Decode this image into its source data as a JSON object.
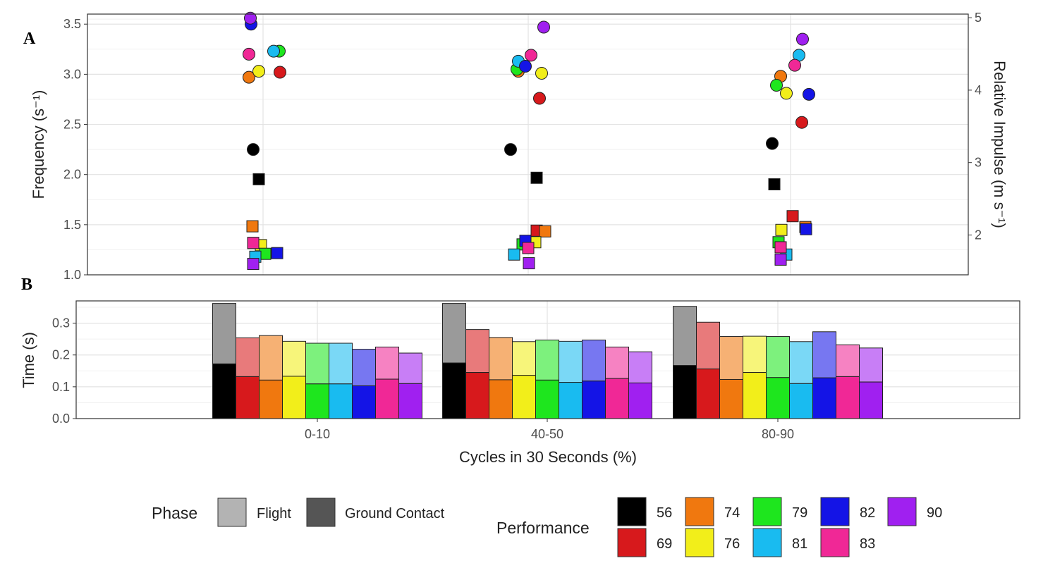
{
  "panels": {
    "a_label": "A",
    "b_label": "B"
  },
  "categories": [
    "0-10",
    "40-50",
    "80-90"
  ],
  "performance_levels": [
    {
      "name": "56",
      "color": "#000000"
    },
    {
      "name": "69",
      "color": "#d7191c"
    },
    {
      "name": "74",
      "color": "#f0780f"
    },
    {
      "name": "76",
      "color": "#f2ee1a"
    },
    {
      "name": "79",
      "color": "#1ee61e"
    },
    {
      "name": "81",
      "color": "#19bbf0"
    },
    {
      "name": "82",
      "color": "#1414e6"
    },
    {
      "name": "83",
      "color": "#f02896"
    },
    {
      "name": "90",
      "color": "#a020f0"
    }
  ],
  "chart_data": [
    {
      "type": "scatter",
      "panel": "A",
      "ylabel": "Frequency (s⁻¹)",
      "y2label": "Relative Impulse (m s⁻¹)",
      "ylim": [
        1.0,
        3.6
      ],
      "y2lim": [
        1.45,
        5.05
      ],
      "yticks": [
        1.0,
        1.5,
        2.0,
        2.5,
        3.0,
        3.5
      ],
      "y2ticks": [
        2,
        3,
        4,
        5
      ],
      "tick_labels": [
        "1.0",
        "1.5",
        "2.0",
        "2.5",
        "3.0",
        "3.5"
      ],
      "tick2_labels": [
        "2",
        "3",
        "4",
        "5"
      ],
      "grid": true,
      "marker_note": "circles = frequency (left axis), squares = relative impulse (right axis)",
      "frequency": [
        {
          "performance": "56",
          "values": [
            2.25,
            2.25,
            2.31
          ]
        },
        {
          "performance": "69",
          "values": [
            3.02,
            2.76,
            2.52
          ]
        },
        {
          "performance": "74",
          "values": [
            2.97,
            3.03,
            2.98
          ]
        },
        {
          "performance": "76",
          "values": [
            3.03,
            3.01,
            2.81
          ]
        },
        {
          "performance": "79",
          "values": [
            3.23,
            3.05,
            2.89
          ]
        },
        {
          "performance": "81",
          "values": [
            3.23,
            3.13,
            3.19
          ]
        },
        {
          "performance": "82",
          "values": [
            3.5,
            3.08,
            2.8
          ]
        },
        {
          "performance": "83",
          "values": [
            3.2,
            3.19,
            3.09
          ]
        },
        {
          "performance": "90",
          "values": [
            3.56,
            3.47,
            3.35
          ]
        }
      ],
      "impulse": [
        {
          "performance": "56",
          "values": [
            2.77,
            2.79,
            2.7
          ]
        },
        {
          "performance": "69",
          "values": [
            1.89,
            2.06,
            2.26
          ]
        },
        {
          "performance": "74",
          "values": [
            2.12,
            2.05,
            2.11
          ]
        },
        {
          "performance": "76",
          "values": [
            1.86,
            1.9,
            2.07
          ]
        },
        {
          "performance": "79",
          "values": [
            1.74,
            1.87,
            1.9
          ]
        },
        {
          "performance": "81",
          "values": [
            1.7,
            1.73,
            1.73
          ]
        },
        {
          "performance": "82",
          "values": [
            1.75,
            1.92,
            2.08
          ]
        },
        {
          "performance": "83",
          "values": [
            1.89,
            1.82,
            1.83
          ]
        },
        {
          "performance": "90",
          "values": [
            1.6,
            1.61,
            1.66
          ]
        }
      ]
    },
    {
      "type": "bar",
      "panel": "B",
      "ylabel": "Time (s)",
      "xlabel": "Cycles in 30 Seconds (%)",
      "ylim": [
        0,
        0.37
      ],
      "yticks": [
        0.0,
        0.1,
        0.2,
        0.3
      ],
      "tick_labels": [
        "0.0",
        "0.1",
        "0.2",
        "0.3"
      ],
      "grid": true,
      "stacked": true,
      "series": [
        {
          "name": "Ground Contact",
          "values": [
            [
              0.172,
              0.132,
              0.121,
              0.133,
              0.109,
              0.109,
              0.103,
              0.124,
              0.11
            ],
            [
              0.175,
              0.145,
              0.122,
              0.136,
              0.121,
              0.114,
              0.118,
              0.126,
              0.112
            ],
            [
              0.167,
              0.156,
              0.123,
              0.145,
              0.129,
              0.11,
              0.128,
              0.132,
              0.115
            ]
          ]
        },
        {
          "name": "Flight",
          "values": [
            [
              0.19,
              0.122,
              0.14,
              0.11,
              0.128,
              0.128,
              0.115,
              0.101,
              0.096
            ],
            [
              0.187,
              0.135,
              0.133,
              0.106,
              0.126,
              0.129,
              0.129,
              0.099,
              0.098
            ],
            [
              0.186,
              0.147,
              0.135,
              0.114,
              0.129,
              0.132,
              0.145,
              0.1,
              0.107
            ]
          ]
        }
      ]
    }
  ],
  "legend": {
    "phase_title": "Phase",
    "phase_items": [
      {
        "label": "Flight",
        "color": "#b3b3b3"
      },
      {
        "label": "Ground Contact",
        "color": "#555555"
      }
    ],
    "performance_title": "Performance"
  }
}
